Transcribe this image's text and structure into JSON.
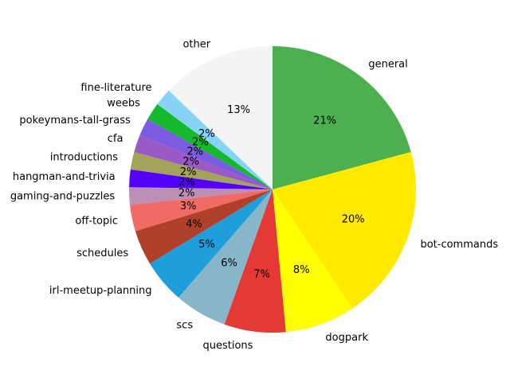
{
  "chart_data": {
    "type": "pie",
    "start_angle_deg": 90,
    "direction": "clockwise",
    "legend": "none",
    "slices": [
      {
        "label": "general",
        "value": 21,
        "pct_label": "21%",
        "color": "#4caf50"
      },
      {
        "label": "bot-commands",
        "value": 20,
        "pct_label": "20%",
        "color": "#ffea00"
      },
      {
        "label": "dogpark",
        "value": 8,
        "pct_label": "8%",
        "color": "#ffff00"
      },
      {
        "label": "questions",
        "value": 7,
        "pct_label": "7%",
        "color": "#e53935"
      },
      {
        "label": "scs",
        "value": 6,
        "pct_label": "6%",
        "color": "#86b6c7"
      },
      {
        "label": "irl-meetup-planning",
        "value": 5,
        "pct_label": "5%",
        "color": "#1e9fdb"
      },
      {
        "label": "schedules",
        "value": 4,
        "pct_label": "4%",
        "color": "#b0402a"
      },
      {
        "label": "off-topic",
        "value": 3,
        "pct_label": "3%",
        "color": "#f06b64"
      },
      {
        "label": "gaming-and-puzzles",
        "value": 2,
        "pct_label": "2%",
        "color": "#bc8fb5"
      },
      {
        "label": "hangman-and-trivia",
        "value": 2,
        "pct_label": "2%",
        "color": "#5500ff"
      },
      {
        "label": "introductions",
        "value": 2,
        "pct_label": "2%",
        "color": "#a3a35a"
      },
      {
        "label": "cfa",
        "value": 2,
        "pct_label": "2%",
        "color": "#9b59c6"
      },
      {
        "label": "pokeymans-tall-grass",
        "value": 2,
        "pct_label": "2%",
        "color": "#7b5ce0"
      },
      {
        "label": "weebs",
        "value": 2,
        "pct_label": "2%",
        "color": "#16b82e"
      },
      {
        "label": "fine-literature",
        "value": 2,
        "pct_label": "2%",
        "color": "#87d3f5"
      },
      {
        "label": "other",
        "value": 13,
        "pct_label": "13%",
        "color": "#f4f4f4"
      }
    ]
  }
}
